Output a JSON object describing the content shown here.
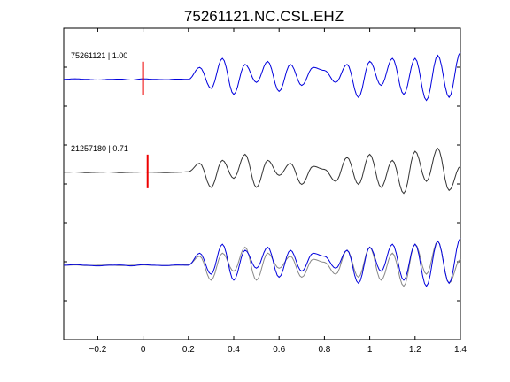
{
  "chart_data": {
    "type": "line",
    "title": "75261121.NC.CSL.EHZ",
    "xlabel": "",
    "ylabel": "",
    "xlim": [
      -0.35,
      1.4
    ],
    "x_ticks": [
      -0.2,
      0,
      0.2,
      0.4,
      0.6,
      0.8,
      1,
      1.2,
      1.4
    ],
    "x_tick_labels": [
      "−0.2",
      "0",
      "0.2",
      "0.4",
      "0.6",
      "0.8",
      "1",
      "1.2",
      "1.4"
    ],
    "grid": false,
    "y_tick_count": 7,
    "panels": [
      {
        "label": "75261121 | 1.00",
        "pick_time": 0.0,
        "series": [
          {
            "color": "#0000dd",
            "start": -0.35,
            "step": 0.05,
            "values": [
              0,
              0.02,
              0,
              -0.02,
              0,
              0.01,
              -0.02,
              0.02,
              0,
              -0.01,
              0.01,
              0,
              0.4,
              -0.3,
              0.7,
              -0.5,
              0.5,
              -0.1,
              0.6,
              -0.4,
              0.5,
              -0.2,
              0.4,
              0.3,
              -0.1,
              0.5,
              -0.6,
              0.6,
              -0.2,
              0.7,
              -0.5,
              0.7,
              -0.7,
              0.8,
              -0.6,
              0.9
            ]
          }
        ]
      },
      {
        "label": "21257180 | 0.71",
        "pick_time": 0.02,
        "series": [
          {
            "color": "#333333",
            "start": -0.35,
            "step": 0.05,
            "values": [
              0,
              0.01,
              -0.01,
              0,
              0.01,
              -0.01,
              0,
              0.01,
              0,
              -0.01,
              0,
              0.02,
              0.3,
              -0.5,
              0.4,
              -0.2,
              0.6,
              -0.5,
              0.4,
              -0.1,
              0.3,
              -0.4,
              0.2,
              0.1,
              -0.3,
              0.5,
              -0.4,
              0.6,
              -0.5,
              0.4,
              -0.7,
              0.7,
              -0.3,
              0.8,
              -0.6,
              0.2
            ]
          }
        ]
      },
      {
        "label": "",
        "series": [
          {
            "color": "#888888",
            "start": -0.35,
            "step": 0.05,
            "values": [
              0,
              0.01,
              -0.01,
              0,
              0.01,
              -0.01,
              0,
              0.01,
              0,
              -0.01,
              0,
              0.02,
              0.3,
              -0.5,
              0.4,
              -0.2,
              0.6,
              -0.5,
              0.4,
              -0.1,
              0.3,
              -0.4,
              0.2,
              0.1,
              -0.3,
              0.5,
              -0.4,
              0.6,
              -0.5,
              0.4,
              -0.7,
              0.7,
              -0.3,
              0.8,
              -0.6,
              0.2
            ]
          },
          {
            "color": "#0000dd",
            "start": -0.35,
            "step": 0.05,
            "values": [
              0,
              0.02,
              0,
              -0.02,
              0,
              0.01,
              -0.02,
              0.02,
              0,
              -0.01,
              0.01,
              0,
              0.4,
              -0.3,
              0.7,
              -0.5,
              0.5,
              -0.1,
              0.6,
              -0.4,
              0.5,
              -0.2,
              0.4,
              0.3,
              -0.1,
              0.5,
              -0.6,
              0.6,
              -0.2,
              0.7,
              -0.5,
              0.7,
              -0.7,
              0.8,
              -0.6,
              0.9
            ]
          }
        ]
      }
    ]
  }
}
